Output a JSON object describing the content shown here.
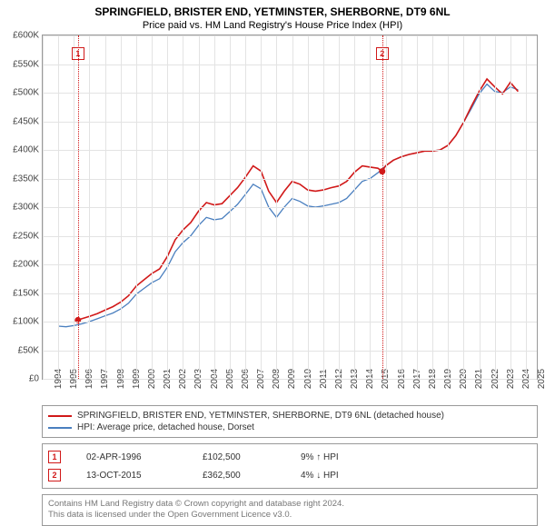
{
  "title": "SPRINGFIELD, BRISTER END, YETMINSTER, SHERBORNE, DT9 6NL",
  "subtitle": "Price paid vs. HM Land Registry's House Price Index (HPI)",
  "chart": {
    "type": "line",
    "background_color": "#ffffff",
    "grid_color": "#e3e3e3",
    "axis_color": "#999999",
    "xlim": [
      1994,
      2025.7
    ],
    "ylim": [
      0,
      600000
    ],
    "yticks": [
      0,
      50000,
      100000,
      150000,
      200000,
      250000,
      300000,
      350000,
      400000,
      450000,
      500000,
      550000,
      600000
    ],
    "ytick_labels": [
      "£0",
      "£50K",
      "£100K",
      "£150K",
      "£200K",
      "£250K",
      "£300K",
      "£350K",
      "£400K",
      "£450K",
      "£500K",
      "£550K",
      "£600K"
    ],
    "xticks": [
      1994,
      1995,
      1996,
      1997,
      1998,
      1999,
      2000,
      2001,
      2002,
      2003,
      2004,
      2005,
      2006,
      2007,
      2008,
      2009,
      2010,
      2011,
      2012,
      2013,
      2014,
      2015,
      2016,
      2017,
      2018,
      2019,
      2020,
      2021,
      2022,
      2023,
      2024,
      2025
    ],
    "tick_fontsize": 10,
    "series": [
      {
        "id": "hpi",
        "label": "HPI: Average price, detached house, Dorset",
        "color": "#4a7fbf",
        "line_width": 1.3,
        "points": [
          [
            1995.0,
            92000
          ],
          [
            1995.5,
            91000
          ],
          [
            1996.0,
            93000
          ],
          [
            1996.5,
            96000
          ],
          [
            1997.0,
            100000
          ],
          [
            1997.5,
            105000
          ],
          [
            1998.0,
            110000
          ],
          [
            1998.5,
            115000
          ],
          [
            1999.0,
            122000
          ],
          [
            1999.5,
            132000
          ],
          [
            2000.0,
            148000
          ],
          [
            2000.5,
            158000
          ],
          [
            2001.0,
            168000
          ],
          [
            2001.5,
            175000
          ],
          [
            2002.0,
            195000
          ],
          [
            2002.5,
            222000
          ],
          [
            2003.0,
            238000
          ],
          [
            2003.5,
            250000
          ],
          [
            2004.0,
            268000
          ],
          [
            2004.5,
            282000
          ],
          [
            2005.0,
            278000
          ],
          [
            2005.5,
            280000
          ],
          [
            2006.0,
            292000
          ],
          [
            2006.5,
            305000
          ],
          [
            2007.0,
            322000
          ],
          [
            2007.5,
            340000
          ],
          [
            2008.0,
            332000
          ],
          [
            2008.5,
            300000
          ],
          [
            2009.0,
            282000
          ],
          [
            2009.5,
            300000
          ],
          [
            2010.0,
            315000
          ],
          [
            2010.5,
            310000
          ],
          [
            2011.0,
            302000
          ],
          [
            2011.5,
            300000
          ],
          [
            2012.0,
            302000
          ],
          [
            2012.5,
            305000
          ],
          [
            2013.0,
            308000
          ],
          [
            2013.5,
            315000
          ],
          [
            2014.0,
            330000
          ],
          [
            2014.5,
            345000
          ],
          [
            2015.0,
            350000
          ],
          [
            2015.5,
            360000
          ],
          [
            2016.0,
            372000
          ],
          [
            2016.5,
            382000
          ],
          [
            2017.0,
            388000
          ],
          [
            2017.5,
            392000
          ],
          [
            2018.0,
            395000
          ],
          [
            2018.5,
            398000
          ],
          [
            2019.0,
            398000
          ],
          [
            2019.5,
            400000
          ],
          [
            2020.0,
            408000
          ],
          [
            2020.5,
            425000
          ],
          [
            2021.0,
            448000
          ],
          [
            2021.5,
            472000
          ],
          [
            2022.0,
            498000
          ],
          [
            2022.5,
            515000
          ],
          [
            2023.0,
            502000
          ],
          [
            2023.5,
            500000
          ],
          [
            2024.0,
            510000
          ],
          [
            2024.5,
            505000
          ]
        ]
      },
      {
        "id": "subject",
        "label": "SPRINGFIELD, BRISTER END, YETMINSTER, SHERBORNE, DT9 6NL (detached house)",
        "color": "#d11919",
        "line_width": 1.6,
        "points": [
          [
            1996.26,
            102500
          ],
          [
            1996.5,
            105000
          ],
          [
            1997.0,
            109000
          ],
          [
            1997.5,
            114000
          ],
          [
            1998.0,
            120000
          ],
          [
            1998.5,
            126000
          ],
          [
            1999.0,
            134000
          ],
          [
            1999.5,
            145000
          ],
          [
            2000.0,
            162000
          ],
          [
            2000.5,
            173000
          ],
          [
            2001.0,
            184000
          ],
          [
            2001.5,
            192000
          ],
          [
            2002.0,
            214000
          ],
          [
            2002.5,
            243000
          ],
          [
            2003.0,
            260000
          ],
          [
            2003.5,
            273000
          ],
          [
            2004.0,
            293000
          ],
          [
            2004.5,
            308000
          ],
          [
            2005.0,
            304000
          ],
          [
            2005.5,
            306000
          ],
          [
            2006.0,
            320000
          ],
          [
            2006.5,
            334000
          ],
          [
            2007.0,
            352000
          ],
          [
            2007.5,
            372000
          ],
          [
            2008.0,
            363000
          ],
          [
            2008.5,
            328000
          ],
          [
            2009.0,
            308000
          ],
          [
            2009.5,
            328000
          ],
          [
            2010.0,
            345000
          ],
          [
            2010.5,
            340000
          ],
          [
            2011.0,
            330000
          ],
          [
            2011.5,
            328000
          ],
          [
            2012.0,
            330000
          ],
          [
            2012.5,
            334000
          ],
          [
            2013.0,
            337000
          ],
          [
            2013.5,
            345000
          ],
          [
            2014.0,
            361000
          ],
          [
            2014.5,
            372000
          ],
          [
            2015.0,
            370000
          ],
          [
            2015.5,
            368000
          ],
          [
            2015.78,
            362500
          ],
          [
            2016.0,
            372000
          ],
          [
            2016.5,
            382000
          ],
          [
            2017.0,
            388000
          ],
          [
            2017.5,
            392000
          ],
          [
            2018.0,
            395000
          ],
          [
            2018.5,
            398000
          ],
          [
            2019.0,
            398000
          ],
          [
            2019.5,
            400000
          ],
          [
            2020.0,
            408000
          ],
          [
            2020.5,
            425000
          ],
          [
            2021.0,
            448000
          ],
          [
            2021.5,
            476000
          ],
          [
            2022.0,
            502000
          ],
          [
            2022.5,
            524000
          ],
          [
            2023.0,
            510000
          ],
          [
            2023.5,
            498000
          ],
          [
            2024.0,
            518000
          ],
          [
            2024.5,
            502000
          ]
        ]
      }
    ],
    "markers": [
      {
        "n": "1",
        "color": "#d11919",
        "x": 1996.26,
        "y": 102500,
        "box_y": 580000
      },
      {
        "n": "2",
        "color": "#d11919",
        "x": 2015.78,
        "y": 362500,
        "box_y": 580000
      }
    ]
  },
  "legend": {
    "rows": [
      {
        "color": "#d11919",
        "label": "SPRINGFIELD, BRISTER END, YETMINSTER, SHERBORNE, DT9 6NL (detached house)"
      },
      {
        "color": "#4a7fbf",
        "label": "HPI: Average price, detached house, Dorset"
      }
    ]
  },
  "transactions": [
    {
      "n": "1",
      "color": "#d11919",
      "date": "02-APR-1996",
      "price": "£102,500",
      "delta": "9% ↑ HPI"
    },
    {
      "n": "2",
      "color": "#d11919",
      "date": "13-OCT-2015",
      "price": "£362,500",
      "delta": "4% ↓ HPI"
    }
  ],
  "footer": {
    "l1": "Contains HM Land Registry data © Crown copyright and database right 2024.",
    "l2": "This data is licensed under the Open Government Licence v3.0."
  }
}
